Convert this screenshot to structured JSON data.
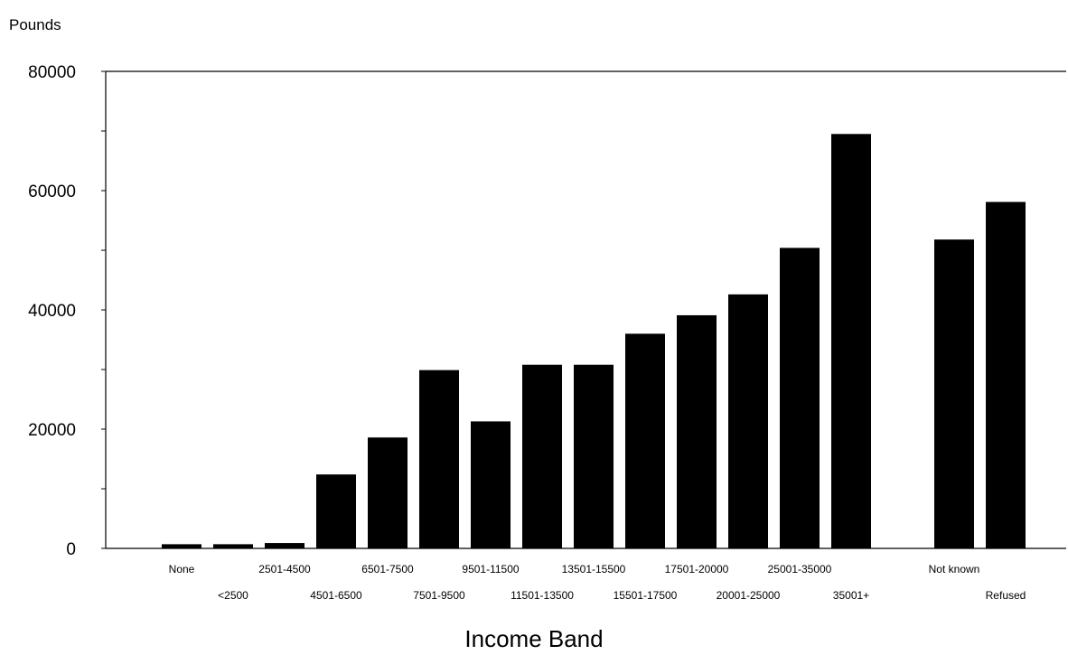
{
  "chart_data": {
    "type": "bar",
    "ylabel": "Pounds",
    "xlabel": "Income Band",
    "ylim": [
      0,
      80000
    ],
    "yticks_labeled": [
      0,
      20000,
      40000,
      60000,
      80000
    ],
    "yticks_minor": [
      10000,
      30000,
      50000,
      70000
    ],
    "categories": [
      "None",
      "<2500",
      "2501-4500",
      "4501-6500",
      "6501-7500",
      "7501-9500",
      "9501-11500",
      "11501-13500",
      "13501-15500",
      "15501-17500",
      "17501-20000",
      "20001-25000",
      "25001-35000",
      "35001+",
      "Not known",
      "Refused"
    ],
    "values": [
      700,
      700,
      900,
      12400,
      18600,
      29900,
      21300,
      30800,
      30800,
      36000,
      39100,
      42600,
      50400,
      69500,
      51800,
      58100
    ],
    "gap_before": "Not known",
    "bar_color": "#000000",
    "grid": false,
    "legend": "none"
  }
}
